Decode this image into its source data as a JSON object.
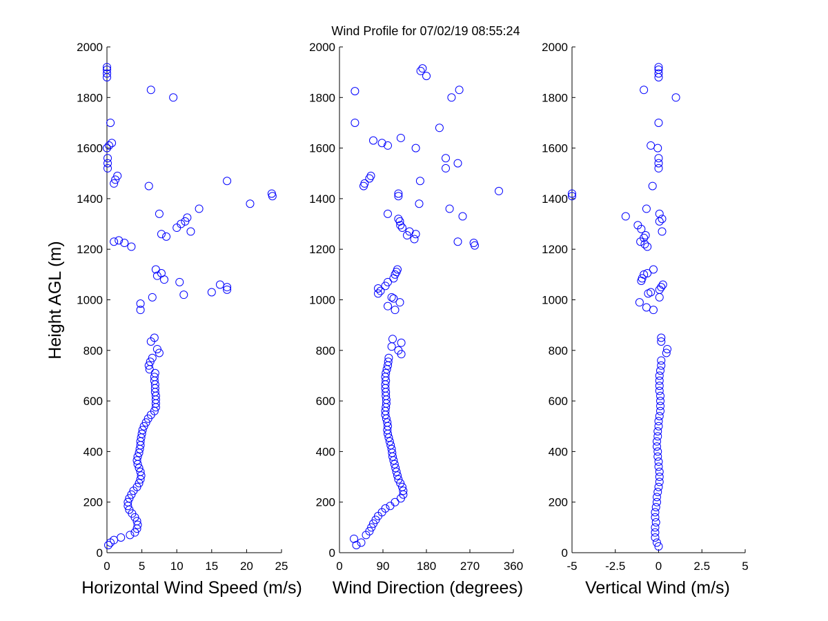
{
  "figure_title": "Wind Profile for  07/02/19 08:55:24",
  "y_axis": {
    "label": "Height AGL (m)",
    "ylim": [
      0,
      2000
    ],
    "ticks": [
      0,
      200,
      400,
      600,
      800,
      1000,
      1200,
      1400,
      1600,
      1800,
      2000
    ],
    "tick_labels": [
      "0",
      "200",
      "400",
      "600",
      "800",
      "1000",
      "1200",
      "1400",
      "1600",
      "1800",
      "2000"
    ]
  },
  "chart_data": [
    {
      "type": "scatter",
      "name": "speed",
      "xlabel": "Horizontal Wind Speed (m/s)",
      "ylabel": "Height AGL (m)",
      "xlim": [
        0,
        25
      ],
      "ylim": [
        0,
        2000
      ],
      "x_ticks": [
        0,
        5,
        10,
        15,
        20,
        25
      ],
      "x_tick_labels": [
        "0",
        "5",
        "10",
        "15",
        "20",
        "25"
      ],
      "y_ticks": [
        0,
        200,
        400,
        600,
        800,
        1000,
        1200,
        1400,
        1600,
        1800,
        2000
      ],
      "y_tick_labels": [
        "0",
        "200",
        "400",
        "600",
        "800",
        "1000",
        "1200",
        "1400",
        "1600",
        "1800",
        "2000"
      ],
      "marker_color": "#0000ff",
      "points": [
        [
          0.2,
          30
        ],
        [
          0.5,
          40
        ],
        [
          1,
          50
        ],
        [
          2,
          60
        ],
        [
          3.3,
          70
        ],
        [
          4,
          80
        ],
        [
          4.3,
          95
        ],
        [
          4.4,
          110
        ],
        [
          4.3,
          125
        ],
        [
          4,
          140
        ],
        [
          3.6,
          155
        ],
        [
          3.2,
          170
        ],
        [
          3,
          185
        ],
        [
          3,
          200
        ],
        [
          3.2,
          215
        ],
        [
          3.5,
          230
        ],
        [
          3.8,
          245
        ],
        [
          4.3,
          260
        ],
        [
          4.6,
          275
        ],
        [
          4.8,
          290
        ],
        [
          4.9,
          305
        ],
        [
          4.8,
          320
        ],
        [
          4.6,
          335
        ],
        [
          4.4,
          350
        ],
        [
          4.3,
          365
        ],
        [
          4.4,
          380
        ],
        [
          4.6,
          395
        ],
        [
          4.7,
          410
        ],
        [
          4.8,
          425
        ],
        [
          4.8,
          440
        ],
        [
          4.9,
          455
        ],
        [
          5,
          470
        ],
        [
          5.1,
          485
        ],
        [
          5.3,
          500
        ],
        [
          5.6,
          515
        ],
        [
          5.9,
          530
        ],
        [
          6.3,
          545
        ],
        [
          6.8,
          560
        ],
        [
          7,
          575
        ],
        [
          7,
          590
        ],
        [
          7,
          605
        ],
        [
          7,
          620
        ],
        [
          6.9,
          635
        ],
        [
          6.9,
          650
        ],
        [
          6.9,
          665
        ],
        [
          6.8,
          680
        ],
        [
          6.8,
          695
        ],
        [
          6.9,
          710
        ],
        [
          6.1,
          725
        ],
        [
          6,
          740
        ],
        [
          6.2,
          755
        ],
        [
          6.5,
          770
        ],
        [
          7.5,
          790
        ],
        [
          7.2,
          805
        ],
        [
          6.3,
          835
        ],
        [
          6.8,
          850
        ],
        [
          4.8,
          960
        ],
        [
          4.8,
          985
        ],
        [
          6.5,
          1010
        ],
        [
          11,
          1020
        ],
        [
          15,
          1030
        ],
        [
          17.2,
          1040
        ],
        [
          17.2,
          1050
        ],
        [
          16.2,
          1060
        ],
        [
          10.4,
          1070
        ],
        [
          8.2,
          1080
        ],
        [
          7.2,
          1095
        ],
        [
          7.8,
          1105
        ],
        [
          7,
          1120
        ],
        [
          3.5,
          1210
        ],
        [
          2.5,
          1225
        ],
        [
          1.7,
          1235
        ],
        [
          1,
          1230
        ],
        [
          8.5,
          1250
        ],
        [
          7.8,
          1260
        ],
        [
          12,
          1270
        ],
        [
          10,
          1285
        ],
        [
          10.6,
          1300
        ],
        [
          11.2,
          1310
        ],
        [
          11.5,
          1325
        ],
        [
          7.5,
          1340
        ],
        [
          13.2,
          1360
        ],
        [
          20.5,
          1380
        ],
        [
          23.7,
          1410
        ],
        [
          23.6,
          1420
        ],
        [
          6,
          1450
        ],
        [
          1,
          1460
        ],
        [
          1.2,
          1475
        ],
        [
          1.5,
          1490
        ],
        [
          17.2,
          1470
        ],
        [
          0.1,
          1520
        ],
        [
          0.1,
          1540
        ],
        [
          0.1,
          1560
        ],
        [
          0,
          1600
        ],
        [
          0.3,
          1610
        ],
        [
          0.7,
          1620
        ],
        [
          0.5,
          1700
        ],
        [
          9.5,
          1800
        ],
        [
          6.3,
          1830
        ],
        [
          0,
          1880
        ],
        [
          0,
          1895
        ],
        [
          0,
          1910
        ],
        [
          0,
          1920
        ]
      ]
    },
    {
      "type": "scatter",
      "name": "direction",
      "xlabel": "Wind Direction (degrees)",
      "xlim": [
        0,
        360
      ],
      "x_ticks": [
        0,
        90,
        180,
        270,
        360
      ],
      "x_tick_labels": [
        "0",
        "90",
        "180",
        "270",
        "360"
      ],
      "y_ticks": [
        0,
        200,
        400,
        600,
        800,
        1000,
        1200,
        1400,
        1600,
        1800,
        2000
      ],
      "y_tick_labels": [
        "0",
        "200",
        "400",
        "600",
        "800",
        "1000",
        "1200",
        "1400",
        "1600",
        "1800",
        "2000"
      ],
      "marker_color": "#0000ff",
      "points": [
        [
          35,
          30
        ],
        [
          45,
          40
        ],
        [
          30,
          55
        ],
        [
          55,
          70
        ],
        [
          62,
          85
        ],
        [
          66,
          100
        ],
        [
          70,
          115
        ],
        [
          75,
          130
        ],
        [
          80,
          145
        ],
        [
          88,
          160
        ],
        [
          95,
          175
        ],
        [
          105,
          185
        ],
        [
          115,
          200
        ],
        [
          127,
          215
        ],
        [
          132,
          230
        ],
        [
          132,
          245
        ],
        [
          130,
          260
        ],
        [
          126,
          275
        ],
        [
          122,
          290
        ],
        [
          120,
          305
        ],
        [
          118,
          320
        ],
        [
          116,
          335
        ],
        [
          114,
          350
        ],
        [
          112,
          365
        ],
        [
          110,
          380
        ],
        [
          109,
          395
        ],
        [
          108,
          410
        ],
        [
          106,
          425
        ],
        [
          104,
          440
        ],
        [
          102,
          455
        ],
        [
          100,
          470
        ],
        [
          99,
          485
        ],
        [
          100,
          500
        ],
        [
          99,
          515
        ],
        [
          97,
          530
        ],
        [
          95,
          545
        ],
        [
          95,
          560
        ],
        [
          96,
          575
        ],
        [
          97,
          590
        ],
        [
          97,
          605
        ],
        [
          96,
          620
        ],
        [
          96,
          635
        ],
        [
          95,
          650
        ],
        [
          95,
          665
        ],
        [
          96,
          680
        ],
        [
          95,
          695
        ],
        [
          96,
          710
        ],
        [
          98,
          725
        ],
        [
          100,
          740
        ],
        [
          101,
          755
        ],
        [
          102,
          770
        ],
        [
          128,
          785
        ],
        [
          122,
          800
        ],
        [
          108,
          815
        ],
        [
          128,
          830
        ],
        [
          110,
          845
        ],
        [
          115,
          960
        ],
        [
          100,
          975
        ],
        [
          125,
          990
        ],
        [
          112,
          1005
        ],
        [
          108,
          1010
        ],
        [
          80,
          1025
        ],
        [
          85,
          1035
        ],
        [
          80,
          1045
        ],
        [
          95,
          1055
        ],
        [
          100,
          1070
        ],
        [
          112,
          1085
        ],
        [
          115,
          1100
        ],
        [
          118,
          1110
        ],
        [
          120,
          1120
        ],
        [
          280,
          1215
        ],
        [
          278,
          1225
        ],
        [
          245,
          1230
        ],
        [
          155,
          1240
        ],
        [
          140,
          1255
        ],
        [
          158,
          1260
        ],
        [
          145,
          1270
        ],
        [
          130,
          1285
        ],
        [
          126,
          1295
        ],
        [
          125,
          1310
        ],
        [
          122,
          1320
        ],
        [
          100,
          1340
        ],
        [
          255,
          1330
        ],
        [
          228,
          1360
        ],
        [
          122,
          1410
        ],
        [
          122,
          1420
        ],
        [
          165,
          1380
        ],
        [
          330,
          1430
        ],
        [
          50,
          1450
        ],
        [
          52,
          1460
        ],
        [
          62,
          1480
        ],
        [
          65,
          1490
        ],
        [
          167,
          1470
        ],
        [
          220,
          1520
        ],
        [
          245,
          1540
        ],
        [
          220,
          1560
        ],
        [
          158,
          1600
        ],
        [
          100,
          1610
        ],
        [
          88,
          1620
        ],
        [
          70,
          1630
        ],
        [
          127,
          1640
        ],
        [
          207,
          1680
        ],
        [
          32,
          1700
        ],
        [
          232,
          1800
        ],
        [
          32,
          1825
        ],
        [
          248,
          1830
        ],
        [
          180,
          1885
        ],
        [
          168,
          1905
        ],
        [
          172,
          1915
        ]
      ]
    },
    {
      "type": "scatter",
      "name": "vertical",
      "xlabel": "Vertical Wind (m/s)",
      "xlim": [
        -5,
        5
      ],
      "x_ticks": [
        -5,
        -2.5,
        0,
        2.5,
        5
      ],
      "x_tick_labels": [
        "-5",
        "-2.5",
        "0",
        "2.5",
        "5"
      ],
      "y_ticks": [
        0,
        200,
        400,
        600,
        800,
        1000,
        1200,
        1400,
        1600,
        1800,
        2000
      ],
      "y_tick_labels": [
        "0",
        "200",
        "400",
        "600",
        "800",
        "1000",
        "1200",
        "1400",
        "1600",
        "1800",
        "2000"
      ],
      "marker_color": "#0000ff",
      "points": [
        [
          0,
          25
        ],
        [
          -0.1,
          40
        ],
        [
          -0.2,
          60
        ],
        [
          -0.2,
          80
        ],
        [
          -0.2,
          100
        ],
        [
          -0.15,
          120
        ],
        [
          -0.2,
          140
        ],
        [
          -0.2,
          160
        ],
        [
          -0.15,
          180
        ],
        [
          -0.1,
          200
        ],
        [
          -0.1,
          220
        ],
        [
          -0.05,
          240
        ],
        [
          0,
          260
        ],
        [
          0.05,
          280
        ],
        [
          0.05,
          300
        ],
        [
          0.05,
          320
        ],
        [
          0,
          340
        ],
        [
          0,
          360
        ],
        [
          -0.05,
          380
        ],
        [
          -0.05,
          400
        ],
        [
          -0.1,
          420
        ],
        [
          -0.1,
          440
        ],
        [
          -0.05,
          460
        ],
        [
          -0.05,
          480
        ],
        [
          0,
          500
        ],
        [
          0,
          520
        ],
        [
          0.05,
          540
        ],
        [
          0.1,
          560
        ],
        [
          0.1,
          580
        ],
        [
          0.1,
          600
        ],
        [
          0.1,
          620
        ],
        [
          0.05,
          640
        ],
        [
          0.05,
          660
        ],
        [
          0.05,
          680
        ],
        [
          0.05,
          700
        ],
        [
          0.1,
          720
        ],
        [
          0.15,
          740
        ],
        [
          0.15,
          760
        ],
        [
          0.45,
          790
        ],
        [
          0.5,
          805
        ],
        [
          0.15,
          835
        ],
        [
          0.15,
          850
        ],
        [
          -0.3,
          960
        ],
        [
          -0.7,
          970
        ],
        [
          -1.1,
          990
        ],
        [
          0.05,
          1010
        ],
        [
          -0.6,
          1025
        ],
        [
          -0.45,
          1030
        ],
        [
          0.05,
          1040
        ],
        [
          0.15,
          1050
        ],
        [
          0.25,
          1060
        ],
        [
          -1,
          1075
        ],
        [
          -0.95,
          1085
        ],
        [
          -0.85,
          1100
        ],
        [
          -0.65,
          1105
        ],
        [
          -0.3,
          1120
        ],
        [
          -0.65,
          1210
        ],
        [
          -0.8,
          1220
        ],
        [
          -1.05,
          1230
        ],
        [
          -0.85,
          1245
        ],
        [
          -0.75,
          1255
        ],
        [
          0.2,
          1270
        ],
        [
          -1,
          1280
        ],
        [
          -1.2,
          1295
        ],
        [
          -1.9,
          1330
        ],
        [
          0.2,
          1320
        ],
        [
          0.05,
          1310
        ],
        [
          0.05,
          1340
        ],
        [
          -0.7,
          1360
        ],
        [
          -5,
          1410
        ],
        [
          -5,
          1420
        ],
        [
          -0.35,
          1450
        ],
        [
          0,
          1520
        ],
        [
          0,
          1540
        ],
        [
          0,
          1560
        ],
        [
          -0.05,
          1600
        ],
        [
          -0.45,
          1610
        ],
        [
          0,
          1700
        ],
        [
          1,
          1800
        ],
        [
          -0.85,
          1830
        ],
        [
          0,
          1880
        ],
        [
          0,
          1895
        ],
        [
          0,
          1910
        ],
        [
          0,
          1920
        ]
      ]
    }
  ]
}
